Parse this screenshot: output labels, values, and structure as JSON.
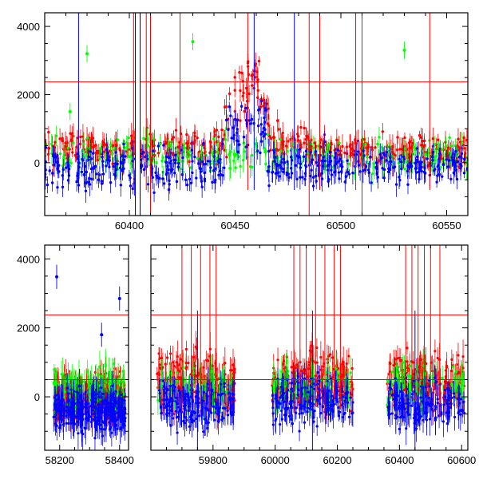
{
  "chart_data": [
    {
      "type": "scatter",
      "panel": "top",
      "title": "",
      "xlabel": "",
      "ylabel": "",
      "xlim": [
        60360,
        60560
      ],
      "ylim": [
        -1550,
        4400
      ],
      "xticks": [
        60400,
        60450,
        60500,
        60550
      ],
      "xtick_labels": [
        "60400",
        "60450",
        "60500",
        "60550"
      ],
      "yticks": [
        0,
        2000,
        4000
      ],
      "ytick_labels": [
        "0",
        "2000",
        "4000"
      ],
      "grid": false,
      "legend": "none",
      "error_bars": true,
      "reference_lines_y": [
        2370
      ],
      "reference_lines_x": [
        60410,
        60485,
        60510
      ],
      "gap_marker_x": [
        60404
      ],
      "series": [
        {
          "color": "#ff0000",
          "segments": [
            {
              "from": 60360,
              "to": 60402,
              "baseline": 420,
              "spread": 380
            },
            {
              "from": 60402,
              "to": 60445,
              "baseline": 500,
              "spread": 420
            },
            {
              "from": 60445,
              "to": 60462,
              "baseline": 1300,
              "spread": 800
            },
            {
              "from": 60462,
              "to": 60485,
              "baseline": 600,
              "spread": 450
            },
            {
              "from": 60485,
              "to": 60560,
              "baseline": 350,
              "spread": 380
            }
          ],
          "peak": {
            "x": 60458,
            "y": 2900
          }
        },
        {
          "color": "#00ff00",
          "segments": [
            {
              "from": 60360,
              "to": 60560,
              "baseline": 200,
              "spread": 420
            }
          ],
          "highlights": [
            [
              60380,
              3200
            ],
            [
              60430,
              3550
            ],
            [
              60530,
              3300
            ],
            [
              60372,
              1500
            ]
          ]
        },
        {
          "color": "#0000ff",
          "segments": [
            {
              "from": 60360,
              "to": 60445,
              "baseline": -150,
              "spread": 500
            },
            {
              "from": 60445,
              "to": 60465,
              "baseline": 1100,
              "spread": 700
            },
            {
              "from": 60465,
              "to": 60560,
              "baseline": -100,
              "spread": 450
            }
          ]
        }
      ]
    },
    {
      "type": "scatter",
      "panel": "bottom",
      "title": "",
      "xlabel": "",
      "ylabel": "",
      "xlim": [
        58150,
        60620
      ],
      "ylim": [
        -1550,
        4400
      ],
      "xticks": [
        58200,
        58400,
        59800,
        60000,
        60200,
        60400,
        60600
      ],
      "xtick_labels": [
        "58200",
        "58400",
        "59800",
        "60000",
        "60200",
        "60400",
        "60600"
      ],
      "yticks": [
        0,
        2000,
        4000
      ],
      "ytick_labels": [
        "0",
        "2000",
        "4000"
      ],
      "grid": false,
      "legend": "none",
      "error_bars": true,
      "reference_lines_y": [
        2370,
        500
      ],
      "axis_break": true,
      "series": [
        {
          "color": "#ff0000",
          "segments": [
            {
              "from": 58180,
              "to": 58420,
              "baseline": 0,
              "spread": 500
            },
            {
              "from": 59620,
              "to": 59870,
              "baseline": 450,
              "spread": 700
            },
            {
              "from": 59990,
              "to": 60250,
              "baseline": 500,
              "spread": 750
            },
            {
              "from": 60360,
              "to": 60610,
              "baseline": 480,
              "spread": 700
            }
          ]
        },
        {
          "color": "#00ff00",
          "segments": [
            {
              "from": 58180,
              "to": 58420,
              "baseline": 200,
              "spread": 500
            },
            {
              "from": 59620,
              "to": 59870,
              "baseline": 300,
              "spread": 500
            },
            {
              "from": 59990,
              "to": 60250,
              "baseline": 300,
              "spread": 500
            },
            {
              "from": 60360,
              "to": 60610,
              "baseline": 350,
              "spread": 500
            }
          ]
        },
        {
          "color": "#0000ff",
          "segments": [
            {
              "from": 58180,
              "to": 58420,
              "baseline": -400,
              "spread": 500
            },
            {
              "from": 59620,
              "to": 59870,
              "baseline": -200,
              "spread": 600
            },
            {
              "from": 59990,
              "to": 60250,
              "baseline": -150,
              "spread": 600
            },
            {
              "from": 60360,
              "to": 60610,
              "baseline": -200,
              "spread": 550
            }
          ],
          "highlights": [
            [
              58190,
              3480
            ],
            [
              58400,
              2850
            ],
            [
              58340,
              1800
            ]
          ]
        }
      ]
    }
  ]
}
